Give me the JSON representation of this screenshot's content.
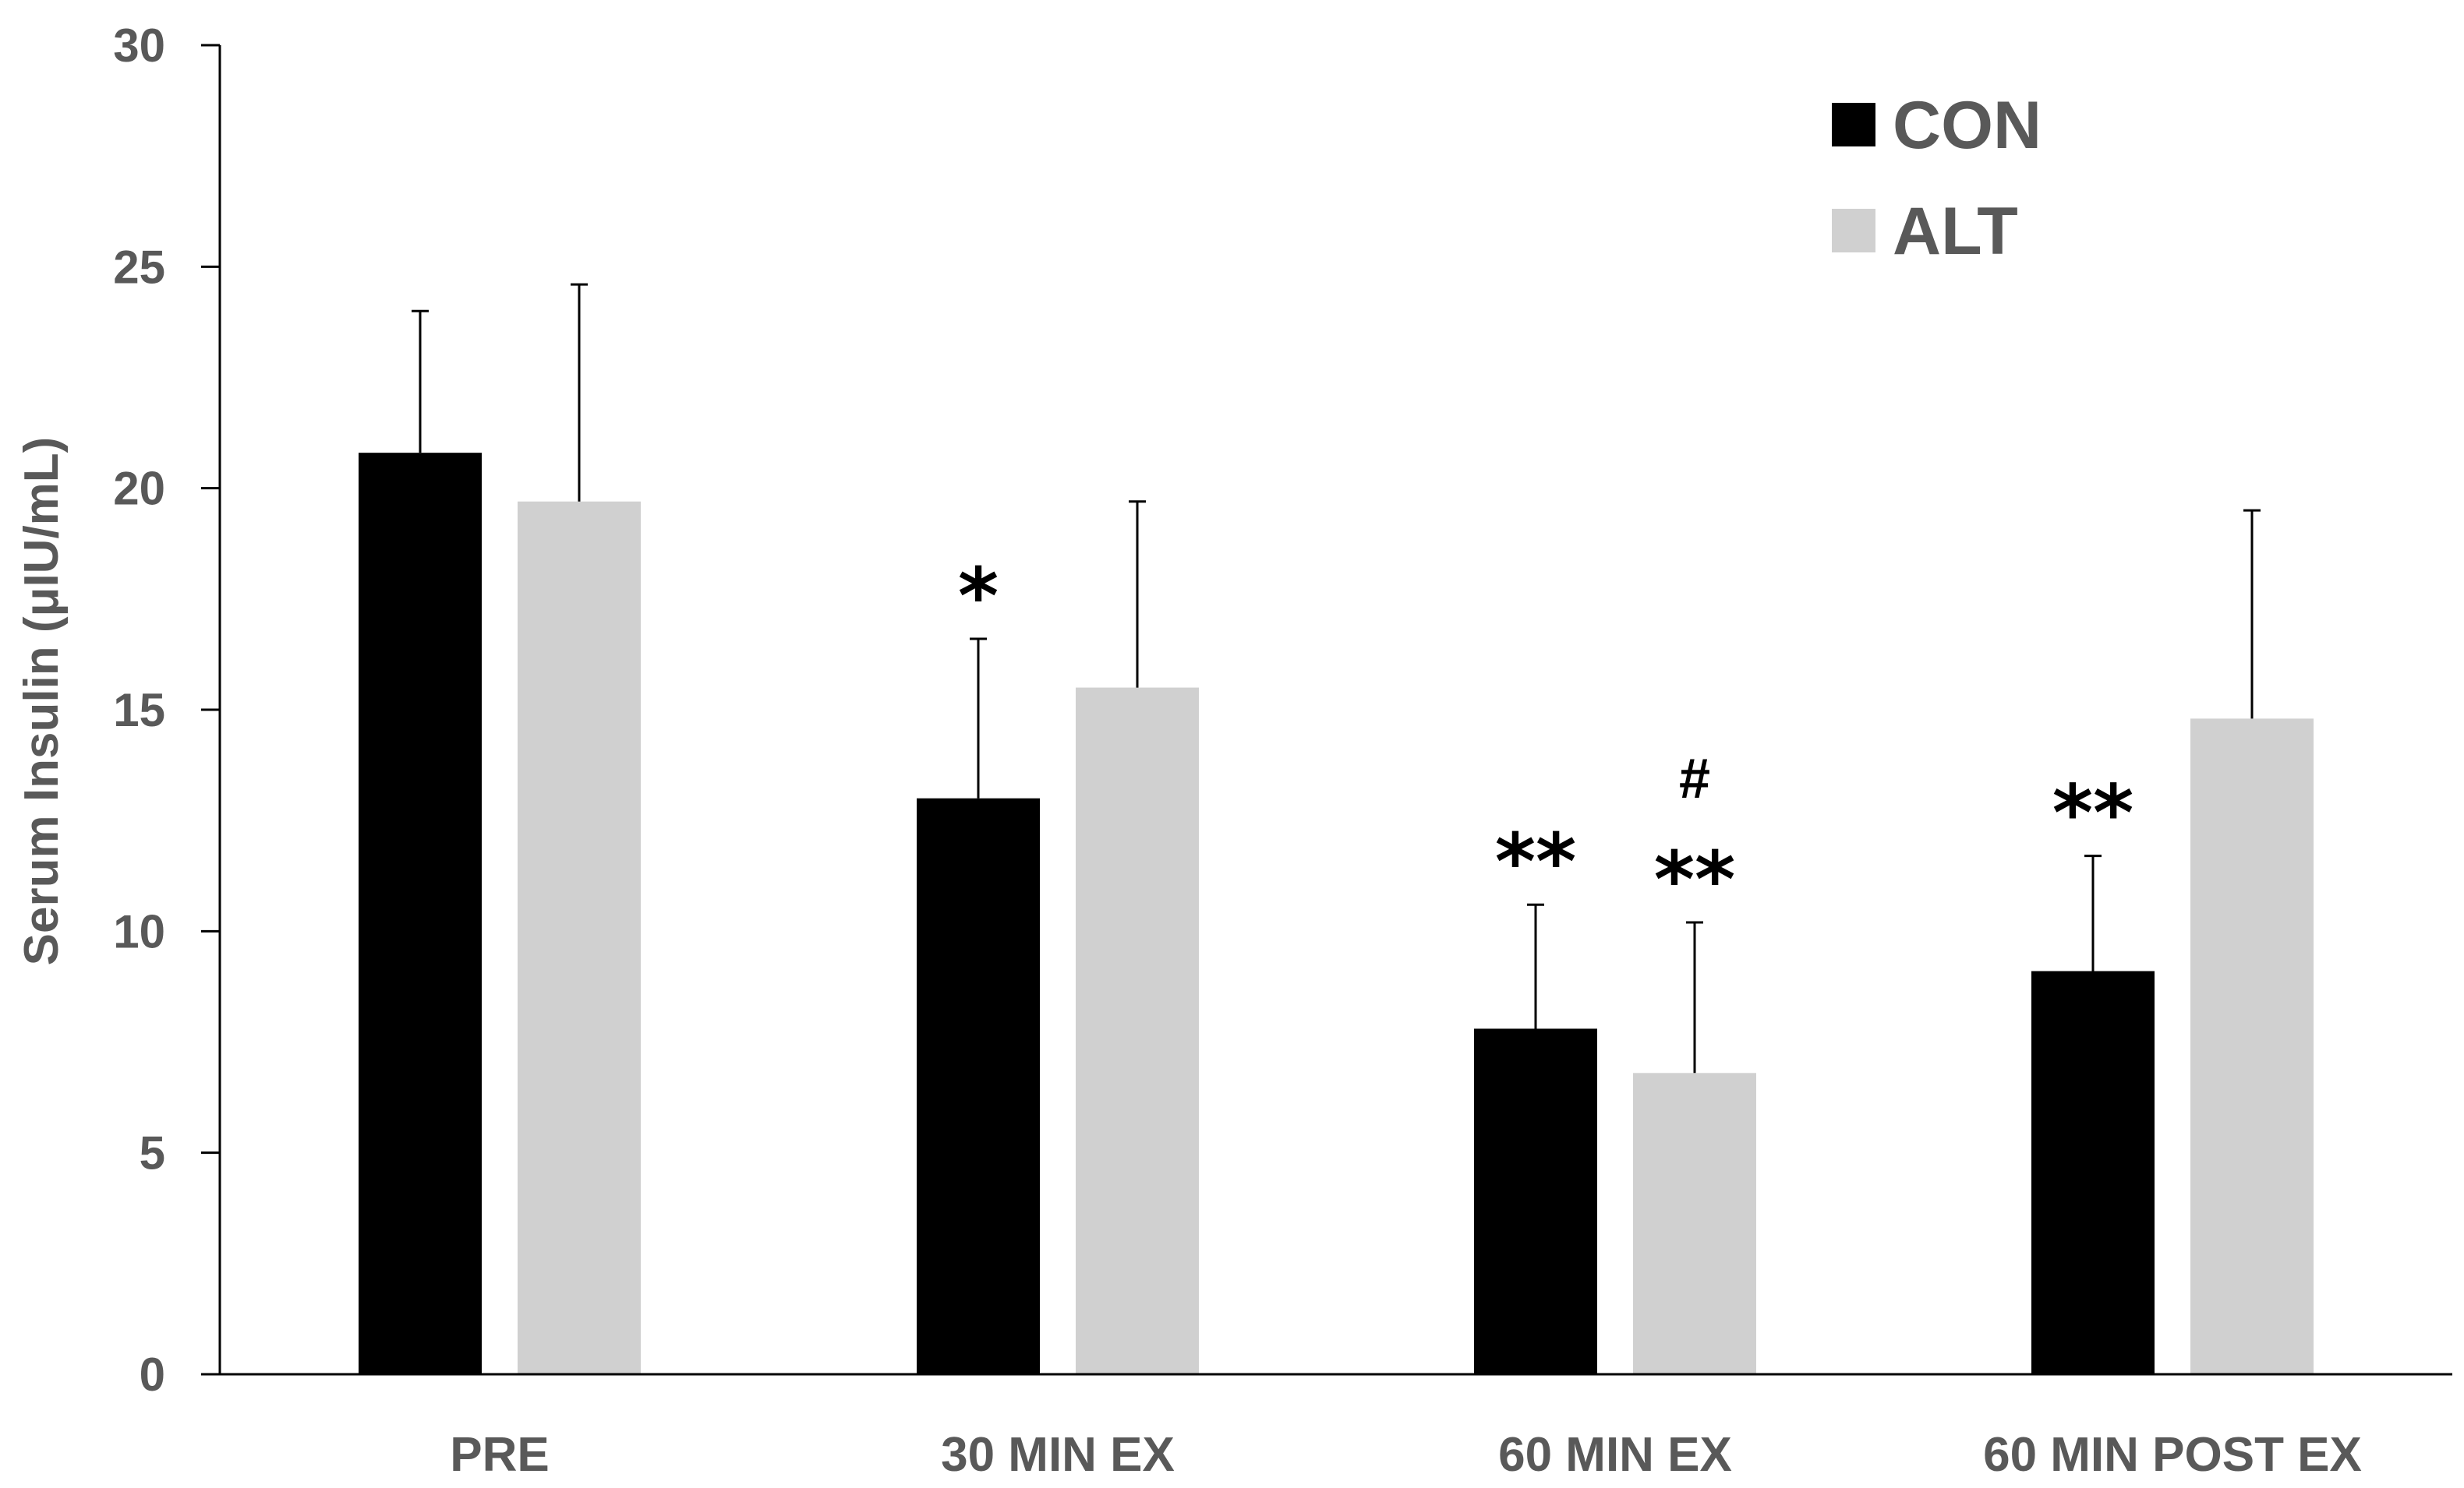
{
  "chart_data": {
    "type": "bar",
    "title": "",
    "xlabel": "",
    "ylabel": "Serum Insulin (μIU/mL)",
    "ylim": [
      0,
      30
    ],
    "yticks": [
      0,
      5,
      10,
      15,
      20,
      25,
      30
    ],
    "categories": [
      "PRE",
      "30 MIN EX",
      "60 MIN EX",
      "60 MIN POST EX"
    ],
    "series": [
      {
        "name": "CON",
        "color": "#000000",
        "values": [
          20.8,
          13.0,
          7.8,
          9.1
        ],
        "errors": [
          3.2,
          3.6,
          2.8,
          2.6
        ]
      },
      {
        "name": "ALT",
        "color": "#d0d0d0",
        "values": [
          19.7,
          15.5,
          6.8,
          14.8
        ],
        "errors": [
          4.9,
          4.2,
          3.4,
          4.7
        ]
      }
    ],
    "annotations": [
      {
        "series": 0,
        "category": 1,
        "text": "*"
      },
      {
        "series": 0,
        "category": 2,
        "text": "**"
      },
      {
        "series": 1,
        "category": 2,
        "text": "**"
      },
      {
        "series": 1,
        "category": 2,
        "text": "#"
      },
      {
        "series": 0,
        "category": 3,
        "text": "**"
      }
    ],
    "legend_position": "top-right",
    "grid": false
  }
}
